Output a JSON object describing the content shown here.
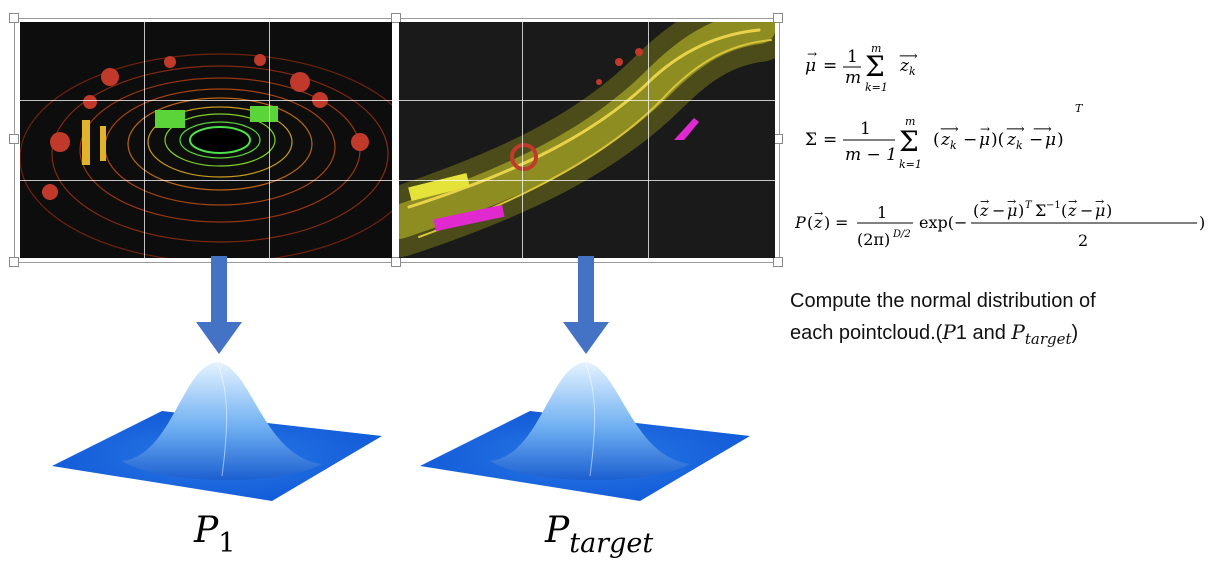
{
  "labels": {
    "p1_base": "P",
    "p1_sub": "1",
    "ptarget_base": "P",
    "ptarget_sub": "target"
  },
  "equations": {
    "mean": "μ⃗ = (1/m) Σ_{k=1}^{m} z⃗_k",
    "covariance": "Σ = (1/(m−1)) Σ_{k=1}^{m} (z⃗_k − μ⃗)(z⃗_k − μ⃗)^T",
    "density": "P(z⃗) = 1/(2π)^{D/2} exp(−(z⃗ − μ⃗)^T Σ^{-1} (z⃗ − μ⃗) / 2)"
  },
  "description": {
    "line1": "Compute the normal distribution of",
    "line2_prefix": "each pointcloud.(",
    "line2_p": "P",
    "line2_one": "1",
    "line2_and": " and ",
    "line2_pt": "P",
    "line2_target": "target",
    "line2_suffix": ")"
  },
  "colors": {
    "arrow": "#4472c4",
    "bell_top": "#cfe6fb",
    "bell_base": "#1f6fe0",
    "pc_background": "#0d0d0d"
  }
}
